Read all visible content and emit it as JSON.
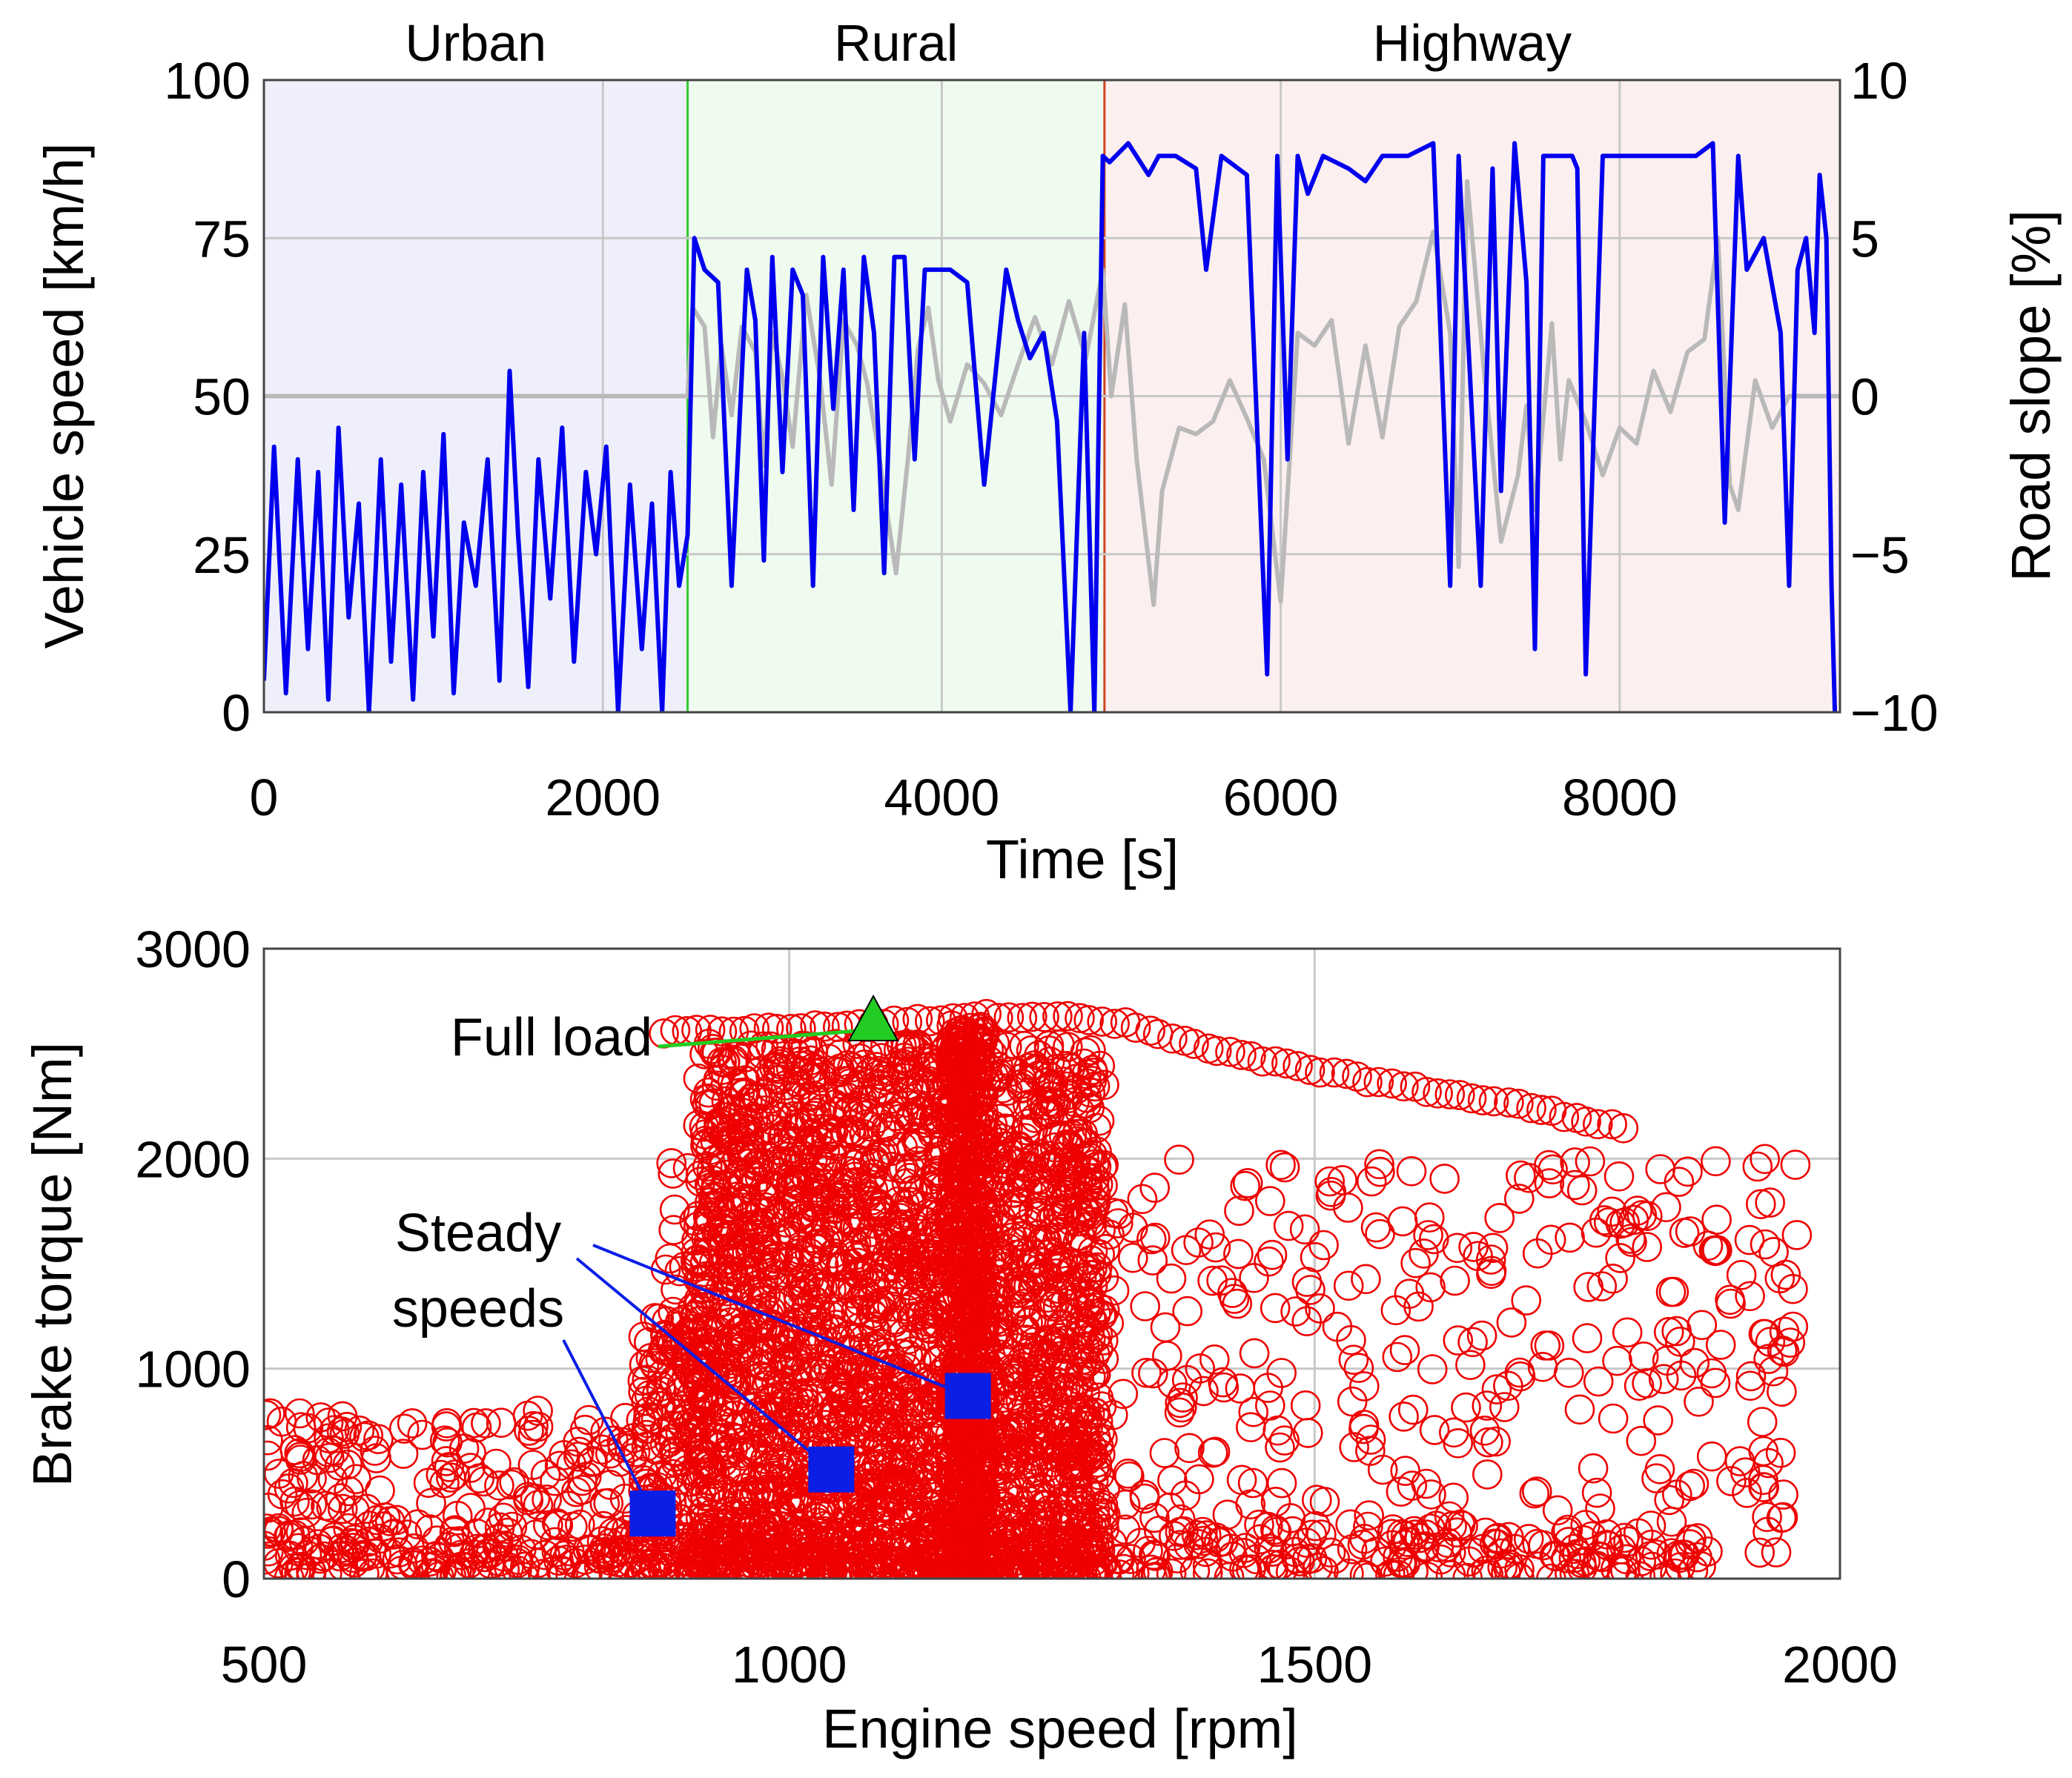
{
  "colors": {
    "speed_line": "#0000ee",
    "slope_line": "#b9b9b9",
    "urban_bg": "#efeffc",
    "rural_bg": "#eefbee",
    "highway_bg": "#fcefef",
    "rural_boundary": "#33cc33",
    "highway_boundary": "#cc4422",
    "scatter": "#ee0000",
    "full_load": "#22cc22",
    "steady": "#0a1ee6"
  },
  "chart_data": [
    {
      "type": "line",
      "title": "",
      "xlabel": "Time [s]",
      "ylabel": "Vehicle speed [km/h]",
      "y2label": "Road slope [%]",
      "xlim": [
        0,
        9300
      ],
      "ylim": [
        0,
        100
      ],
      "y2lim": [
        -10,
        10
      ],
      "xticks": [
        "0",
        "2000",
        "4000",
        "6000",
        "8000"
      ],
      "yticks": [
        "0",
        "25",
        "50",
        "75",
        "100"
      ],
      "y2ticks": [
        "−10",
        "−5",
        "0",
        "5",
        "10"
      ],
      "grid": true,
      "segments": [
        {
          "label": "Urban",
          "start": 0,
          "end": 2500
        },
        {
          "label": "Rural",
          "start": 2500,
          "end": 4960
        },
        {
          "label": "Highway",
          "start": 4960,
          "end": 9300
        }
      ],
      "series": [
        {
          "name": "Vehicle speed",
          "axis": "left",
          "x": [
            0,
            60,
            130,
            200,
            260,
            320,
            380,
            440,
            500,
            560,
            620,
            690,
            750,
            810,
            880,
            940,
            1000,
            1060,
            1120,
            1180,
            1250,
            1320,
            1390,
            1450,
            1500,
            1560,
            1620,
            1690,
            1760,
            1830,
            1900,
            1960,
            2020,
            2090,
            2160,
            2230,
            2290,
            2350,
            2400,
            2450,
            2500,
            2540,
            2600,
            2680,
            2760,
            2850,
            2900,
            2950,
            3000,
            3060,
            3120,
            3180,
            3240,
            3300,
            3360,
            3420,
            3480,
            3540,
            3600,
            3660,
            3720,
            3780,
            3840,
            3900,
            3960,
            4050,
            4150,
            4250,
            4380,
            4450,
            4520,
            4600,
            4680,
            4760,
            4840,
            4900,
            4950,
            4990,
            5100,
            5220,
            5280,
            5380,
            5500,
            5560,
            5650,
            5800,
            5920,
            5980,
            6040,
            6100,
            6160,
            6250,
            6400,
            6500,
            6600,
            6750,
            6900,
            7000,
            7050,
            7100,
            7180,
            7250,
            7300,
            7380,
            7450,
            7500,
            7550,
            7620,
            7680,
            7720,
            7750,
            7800,
            7900,
            8000,
            8150,
            8300,
            8450,
            8550,
            8620,
            8700,
            8750,
            8850,
            8950,
            9000,
            9050,
            9100,
            9150,
            9180,
            9220,
            9250,
            9270
          ],
          "values": [
            5,
            42,
            3,
            40,
            10,
            38,
            2,
            45,
            15,
            33,
            0,
            40,
            8,
            36,
            2,
            38,
            12,
            44,
            3,
            30,
            20,
            40,
            5,
            54,
            28,
            4,
            40,
            18,
            45,
            8,
            38,
            25,
            42,
            0,
            36,
            10,
            33,
            0,
            38,
            20,
            28,
            75,
            70,
            68,
            20,
            70,
            62,
            24,
            72,
            38,
            70,
            66,
            20,
            72,
            48,
            70,
            32,
            72,
            60,
            22,
            72,
            72,
            40,
            70,
            70,
            70,
            68,
            36,
            70,
            62,
            56,
            60,
            46,
            0,
            60,
            0,
            88,
            87,
            90,
            85,
            88,
            88,
            86,
            70,
            88,
            85,
            6,
            88,
            40,
            88,
            82,
            88,
            86,
            84,
            88,
            88,
            90,
            20,
            88,
            62,
            20,
            86,
            35,
            90,
            68,
            10,
            88,
            88,
            88,
            88,
            86,
            6,
            88,
            88,
            88,
            88,
            88,
            90,
            30,
            88,
            70,
            75,
            60,
            20,
            70,
            75,
            60,
            85,
            75,
            20,
            0
          ]
        },
        {
          "name": "Road slope",
          "axis": "right",
          "x": [
            0,
            2400,
            2500,
            2530,
            2600,
            2650,
            2700,
            2760,
            2820,
            2900,
            2950,
            3000,
            3060,
            3120,
            3200,
            3280,
            3350,
            3420,
            3500,
            3560,
            3620,
            3680,
            3730,
            3800,
            3860,
            3920,
            3980,
            4050,
            4150,
            4250,
            4350,
            4450,
            4550,
            4650,
            4750,
            4850,
            4950,
            5000,
            5080,
            5150,
            5250,
            5300,
            5400,
            5500,
            5600,
            5700,
            5800,
            5900,
            6000,
            6100,
            6200,
            6300,
            6400,
            6500,
            6600,
            6700,
            6800,
            6900,
            7000,
            7050,
            7100,
            7200,
            7300,
            7400,
            7450,
            7500,
            7600,
            7650,
            7700,
            7800,
            7900,
            8000,
            8100,
            8200,
            8300,
            8400,
            8500,
            8580,
            8650,
            8700,
            8800,
            8900,
            9000,
            9300
          ],
          "values": [
            0,
            0,
            0,
            2.8,
            2.2,
            -1.3,
            1.6,
            -0.6,
            2.2,
            1.4,
            -2.2,
            2.0,
            0.6,
            -1.6,
            3.2,
            0.6,
            -2.8,
            2.4,
            1.6,
            0.4,
            -1.5,
            -3.8,
            -5.6,
            -2.0,
            1.5,
            2.8,
            0.5,
            -0.8,
            1.0,
            0.4,
            -0.6,
            1.0,
            2.5,
            1.0,
            3.0,
            1.2,
            4.0,
            0,
            2.9,
            -2.0,
            -6.6,
            -3.0,
            -1.0,
            -1.2,
            -0.8,
            0.5,
            -0.7,
            -2.0,
            -6.5,
            2.0,
            1.6,
            2.4,
            -1.5,
            1.6,
            -1.3,
            2.2,
            3.0,
            5.2,
            2.0,
            -5.4,
            6.8,
            0.8,
            -4.6,
            -2.5,
            -0.3,
            -3.6,
            2.3,
            -2.0,
            0.5,
            -0.8,
            -2.5,
            -1.0,
            -1.5,
            0.8,
            -0.5,
            1.4,
            1.8,
            5.0,
            -2.8,
            -3.6,
            0.5,
            -1.0,
            0,
            0
          ]
        }
      ]
    },
    {
      "type": "scatter",
      "title": "",
      "xlabel": "Engine speed [rpm]",
      "ylabel": "Brake torque [Nm]",
      "xlim": [
        500,
        2000
      ],
      "ylim": [
        0,
        3000
      ],
      "xticks": [
        "500",
        "1000",
        "1500",
        "2000"
      ],
      "yticks": [
        "0",
        "1000",
        "2000",
        "3000"
      ],
      "grid": true,
      "series": [
        {
          "name": "Operating points",
          "marker": "circle-open",
          "full_load_curve": {
            "x": [
              880,
              1000,
              1100,
              1180,
              1250,
              1320,
              1400,
              1500,
              1600,
              1700,
              1800
            ],
            "y": [
              2600,
              2620,
              2650,
              2680,
              2680,
              2640,
              2520,
              2420,
              2330,
              2250,
              2140
            ]
          },
          "dense_band": {
            "x": [
              910,
              1300
            ],
            "y": [
              0,
              2650
            ]
          },
          "vertical_column": {
            "x": 1170,
            "y": [
              0,
              2650
            ]
          },
          "sparse_region": {
            "x": [
              500,
              1960
            ],
            "y": [
              0,
              2000
            ]
          }
        }
      ],
      "points": {
        "full_load": {
          "label": "Full load",
          "x": 1080,
          "y": 2640
        },
        "steady_speeds": {
          "label_lines": [
            "Steady",
            "speeds"
          ],
          "x": [
            870,
            1040,
            1170
          ],
          "y": [
            310,
            520,
            870
          ]
        }
      }
    }
  ]
}
